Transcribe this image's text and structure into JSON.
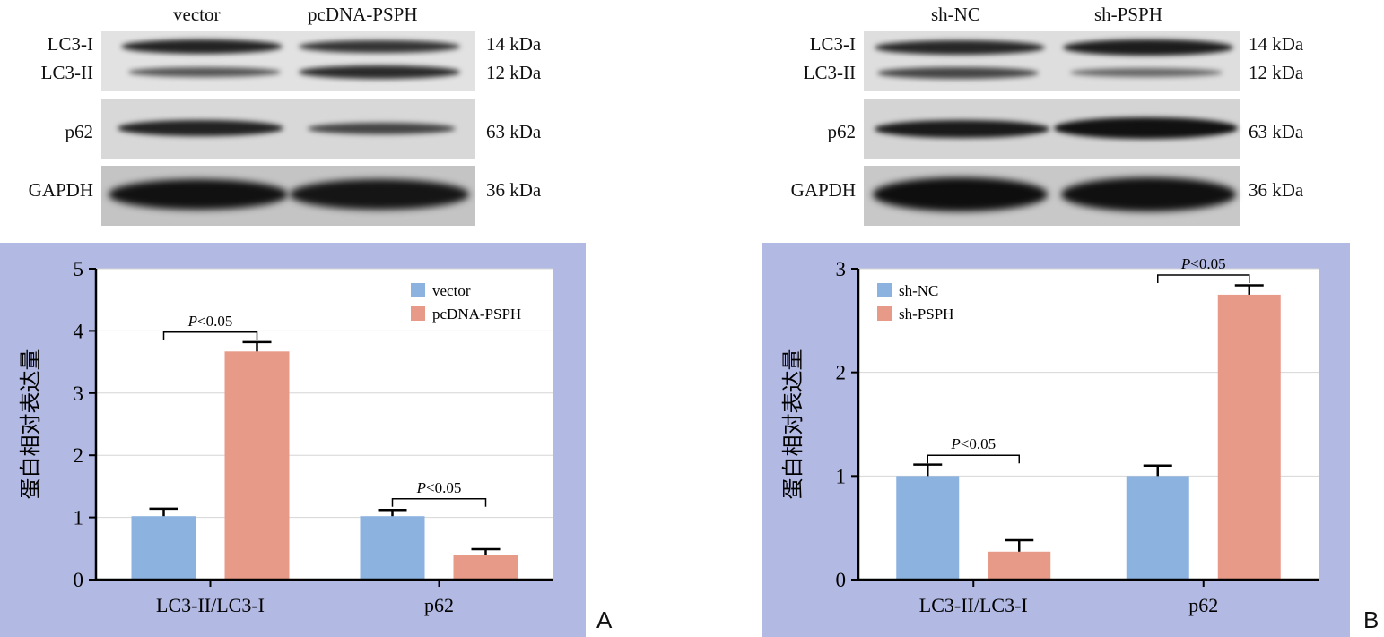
{
  "panels": [
    {
      "letter": "A",
      "blot": {
        "lanes": [
          "vector",
          "pcDNA-PSPH"
        ],
        "row_labels": [
          "LC3-I",
          "LC3-II",
          "p62",
          "GAPDH"
        ],
        "kda_labels": [
          "14 kDa",
          "12 kDa",
          "63 kDa",
          "36 kDa"
        ]
      },
      "chart_data": {
        "type": "bar",
        "categories": [
          "LC3-II/LC3-I",
          "p62"
        ],
        "series": [
          {
            "name": "vector",
            "values": [
              1.02,
              1.02
            ],
            "errors": [
              0.12,
              0.1
            ],
            "color": "#8cb2e0"
          },
          {
            "name": "pcDNA-PSPH",
            "values": [
              3.67,
              0.39
            ],
            "errors": [
              0.15,
              0.1
            ],
            "color": "#e89a88"
          }
        ],
        "ylabel": "蛋白相对表达量",
        "ylim": [
          0,
          5
        ],
        "yticks": [
          0,
          1,
          2,
          3,
          4,
          5
        ],
        "ytick_labels": [
          "0",
          "1",
          "2",
          "3",
          "4",
          "5"
        ],
        "grid": true,
        "legend": "top-right",
        "significance": [
          {
            "category_index": 0,
            "label_italic": "P",
            "label_rest": "<0.05",
            "bracket_y": 3.98
          },
          {
            "category_index": 1,
            "label_italic": "P",
            "label_rest": "<0.05",
            "bracket_y": 1.3
          }
        ]
      }
    },
    {
      "letter": "B",
      "blot": {
        "lanes": [
          "sh-NC",
          "sh-PSPH"
        ],
        "row_labels": [
          "LC3-I",
          "LC3-II",
          "p62",
          "GAPDH"
        ],
        "kda_labels": [
          "14 kDa",
          "12 kDa",
          "63 kDa",
          "36 kDa"
        ]
      },
      "chart_data": {
        "type": "bar",
        "categories": [
          "LC3-II/LC3-I",
          "p62"
        ],
        "series": [
          {
            "name": "sh-NC",
            "values": [
              1.0,
              1.0
            ],
            "errors": [
              0.11,
              0.1
            ],
            "color": "#8cb2e0"
          },
          {
            "name": "sh-PSPH",
            "values": [
              0.27,
              2.75
            ],
            "errors": [
              0.11,
              0.09
            ],
            "color": "#e89a88"
          }
        ],
        "ylabel": "蛋白相对表达量",
        "ylim": [
          0,
          3
        ],
        "yticks": [
          0,
          1,
          2,
          3
        ],
        "ytick_labels": [
          "0",
          "1",
          "2",
          "3"
        ],
        "grid": true,
        "legend": "top-left",
        "significance": [
          {
            "category_index": 0,
            "label_italic": "P",
            "label_rest": "<0.05",
            "bracket_y": 1.2
          },
          {
            "category_index": 1,
            "label_italic": "P",
            "label_rest": "<0.05",
            "bracket_y": 2.94
          }
        ]
      }
    }
  ]
}
